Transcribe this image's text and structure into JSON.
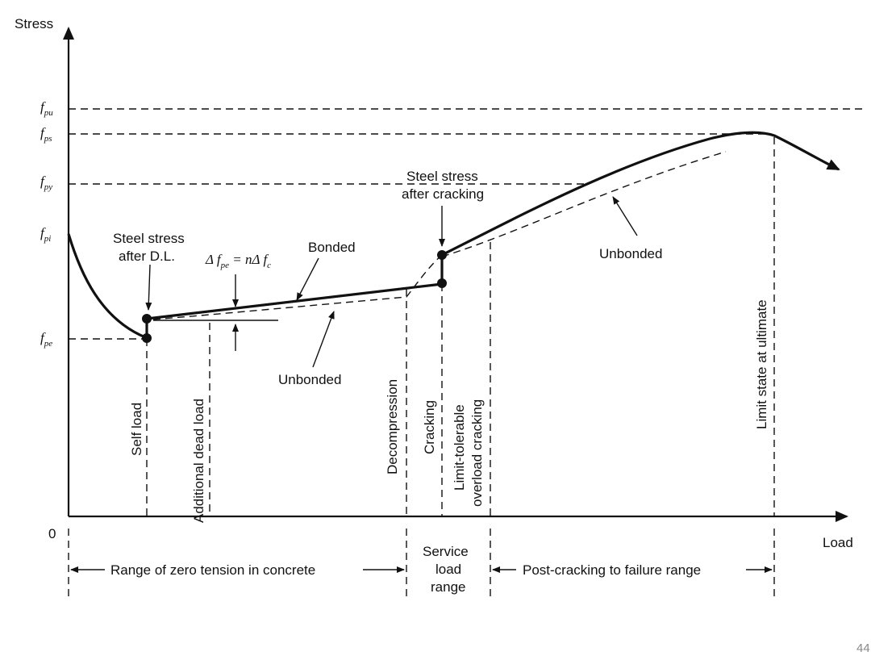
{
  "axes": {
    "y_label": "Stress",
    "x_label": "Load",
    "origin": "0"
  },
  "stress_levels": [
    {
      "sym": "f",
      "sub": "pu"
    },
    {
      "sym": "f",
      "sub": "ps"
    },
    {
      "sym": "f",
      "sub": "py"
    },
    {
      "sym": "f",
      "sub": "pi"
    },
    {
      "sym": "f",
      "sub": "pe"
    }
  ],
  "load_stages": {
    "self_load": "Self load",
    "additional_dead_load": "Additional dead load",
    "decompression": "Decompression",
    "cracking": "Cracking",
    "limit_tolerable_1": "Limit-tolerable",
    "limit_tolerable_2": "overload cracking",
    "limit_state": "Limit state at ultimate"
  },
  "annotations": {
    "steel_dl_1": "Steel stress",
    "steel_dl_2": "after D.L.",
    "steel_crack_1": "Steel stress",
    "steel_crack_2": "after cracking",
    "bonded": "Bonded",
    "unbonded_1": "Unbonded",
    "unbonded_2": "Unbonded",
    "delta_eq": {
      "lhs_sym": "Δ f",
      "lhs_sub": "pe",
      "mid": " = nΔ f",
      "rhs_sub": "c"
    }
  },
  "ranges": {
    "zero_tension": "Range of zero tension in concrete",
    "service_1": "Service",
    "service_2": "load",
    "service_3": "range",
    "post_cracking": "Post-cracking to failure range"
  },
  "page_number": "44"
}
